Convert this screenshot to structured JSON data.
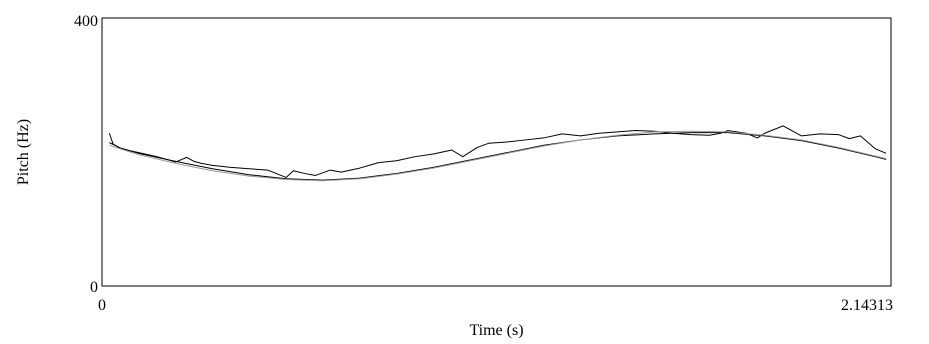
{
  "chart_data": {
    "type": "line",
    "xlabel": "Time (s)",
    "ylabel": "Pitch (Hz)",
    "xlim": [
      0,
      2.14313
    ],
    "ylim": [
      0,
      400
    ],
    "x_tick_labels": [
      "0",
      "2.14313"
    ],
    "y_tick_labels": [
      "0",
      "400"
    ],
    "grid": false,
    "series": [
      {
        "color": "#000000",
        "x": [
          0.02,
          0.03,
          0.05,
          0.1,
          0.15,
          0.2,
          0.23,
          0.25,
          0.27,
          0.3,
          0.35,
          0.4,
          0.45,
          0.5,
          0.52,
          0.55,
          0.58,
          0.62,
          0.65,
          0.7,
          0.75,
          0.8,
          0.85,
          0.9,
          0.95,
          0.98,
          1.02,
          1.05,
          1.1,
          1.15,
          1.2,
          1.25,
          1.3,
          1.35,
          1.4,
          1.45,
          1.5,
          1.55,
          1.6,
          1.65,
          1.68,
          1.7,
          1.75,
          1.78,
          1.8,
          1.85,
          1.9,
          1.95,
          2.0,
          2.03,
          2.06,
          2.1,
          2.13
        ],
        "y": [
          228,
          212,
          205,
          199,
          193,
          185,
          192,
          186,
          183,
          180,
          177,
          175,
          173,
          162,
          172,
          168,
          165,
          173,
          170,
          176,
          184,
          187,
          193,
          197,
          203,
          193,
          207,
          213,
          215,
          218,
          221,
          227,
          224,
          228,
          230,
          232,
          231,
          228,
          226,
          225,
          228,
          232,
          228,
          221,
          228,
          239,
          224,
          227,
          226,
          220,
          224,
          205,
          198
        ]
      },
      {
        "color": "#000000",
        "x": [
          0.02,
          0.05,
          0.1,
          0.2,
          0.3,
          0.4,
          0.5,
          0.6,
          0.7,
          0.8,
          0.9,
          1.0,
          1.1,
          1.2,
          1.3,
          1.4,
          1.5,
          1.6,
          1.7,
          1.8,
          1.9,
          2.0,
          2.1,
          2.13
        ],
        "y": [
          214,
          206,
          198,
          186,
          175,
          166,
          160,
          158,
          161,
          168,
          177,
          188,
          199,
          210,
          218,
          224,
          227,
          229,
          229,
          224,
          217,
          206,
          193,
          189
        ]
      },
      {
        "color": "#999999",
        "x": [
          0.02,
          0.1,
          0.2,
          0.3,
          0.4,
          0.5,
          0.6,
          0.7,
          0.8,
          0.9,
          1.0,
          1.1,
          1.2,
          1.3,
          1.4,
          1.5,
          1.6,
          1.7,
          1.8,
          1.9,
          2.0,
          2.1,
          2.13
        ],
        "y": [
          210,
          196,
          183,
          172,
          164,
          159,
          157,
          160,
          167,
          176,
          187,
          198,
          209,
          218,
          225,
          230,
          231,
          230,
          225,
          218,
          207,
          194,
          190
        ]
      }
    ]
  }
}
